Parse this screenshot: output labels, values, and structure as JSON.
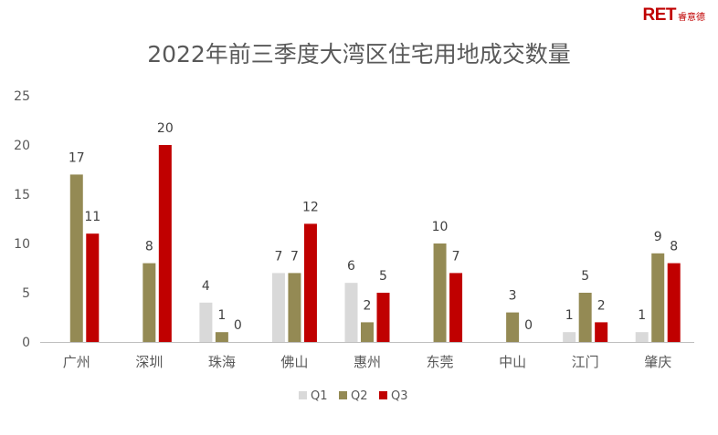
{
  "logo": {
    "latin": "RET",
    "chinese": "睿意德"
  },
  "chart_data": {
    "type": "bar",
    "title": "2022年前三季度大湾区住宅用地成交数量",
    "categories": [
      "广州",
      "深圳",
      "珠海",
      "佛山",
      "惠州",
      "东莞",
      "中山",
      "江门",
      "肇庆"
    ],
    "series": [
      {
        "name": "Q1",
        "color": "#d9d9d9",
        "values": [
          null,
          null,
          4,
          7,
          6,
          null,
          null,
          1,
          1
        ]
      },
      {
        "name": "Q2",
        "color": "#948a54",
        "values": [
          17,
          8,
          1,
          7,
          2,
          10,
          3,
          5,
          9
        ]
      },
      {
        "name": "Q3",
        "color": "#c00000",
        "values": [
          11,
          20,
          0,
          12,
          5,
          7,
          0,
          2,
          8
        ]
      }
    ],
    "ylim": [
      0,
      25
    ],
    "yticks": [
      0,
      5,
      10,
      15,
      20,
      25
    ],
    "grid": false,
    "legend": "bottom",
    "xlabel": "",
    "ylabel": ""
  }
}
